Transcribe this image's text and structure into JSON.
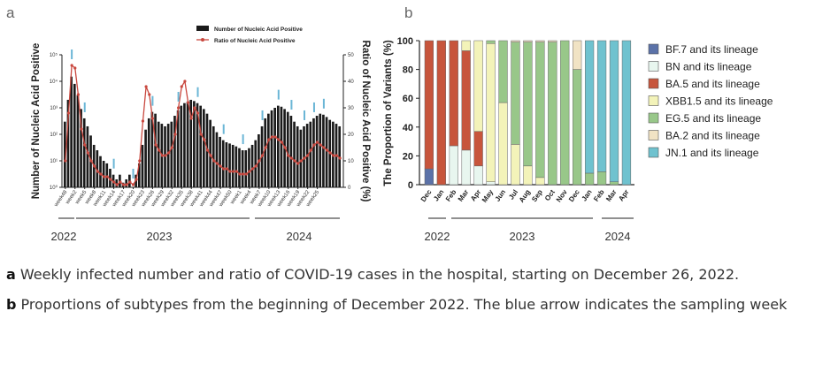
{
  "chart_data": [
    {
      "panel_label": "a",
      "type": "bar",
      "ylabel": "Number of Nucleic Acid Positive",
      "y2label": "Ratio of Nucleic Acid Positive (%)",
      "y_scale": "log",
      "ylim": [
        1,
        100000
      ],
      "y_ticks": [
        "10⁰",
        "10¹",
        "10²",
        "10³",
        "10⁴",
        "10⁵"
      ],
      "y2lim": [
        0,
        50
      ],
      "y2_ticks": [
        "0",
        "10",
        "20",
        "30",
        "40",
        "50"
      ],
      "legend": [
        "Number of Nucleic Acid Positive",
        "Ratio of Nucleic Acid Positive"
      ],
      "legend_position": "top-center",
      "x_tick_labels": [
        "week48",
        "week2",
        "week5",
        "week8",
        "week11",
        "week14",
        "week17",
        "week20",
        "week23",
        "week26",
        "week29",
        "week32",
        "week35",
        "week38",
        "week41",
        "week44",
        "week47",
        "week50",
        "week1",
        "week4",
        "week7",
        "week10",
        "week13",
        "week16",
        "week19",
        "week22",
        "week25"
      ],
      "year_groups": [
        "2022",
        "2023",
        "2024"
      ],
      "series": [
        {
          "name": "Number of Nucleic Acid Positive",
          "type": "bar",
          "values": [
            300,
            2000,
            15000,
            8000,
            3000,
            900,
            400,
            200,
            90,
            40,
            25,
            15,
            10,
            8,
            5,
            3,
            2,
            3,
            1.5,
            2,
            3,
            1,
            3,
            8,
            40,
            150,
            400,
            700,
            600,
            300,
            250,
            200,
            250,
            300,
            500,
            800,
            1200,
            1500,
            1700,
            2000,
            1800,
            1500,
            1200,
            900,
            600,
            350,
            200,
            120,
            80,
            60,
            50,
            45,
            40,
            35,
            30,
            25,
            25,
            30,
            40,
            60,
            100,
            200,
            400,
            600,
            800,
            1000,
            1200,
            1100,
            900,
            700,
            500,
            300,
            200,
            150,
            200,
            250,
            300,
            400,
            500,
            600,
            550,
            450,
            350,
            300,
            250,
            200
          ]
        },
        {
          "name": "Ratio of Nucleic Acid Positive",
          "type": "line",
          "values": [
            10,
            28,
            46,
            45,
            35,
            22,
            16,
            13,
            10,
            8,
            6,
            5,
            4,
            4,
            3,
            2,
            1,
            2,
            1,
            1,
            2,
            1,
            3,
            10,
            25,
            38,
            35,
            26,
            16,
            14,
            12,
            12,
            13,
            15,
            20,
            30,
            38,
            40,
            32,
            26,
            30,
            28,
            20,
            18,
            14,
            12,
            10,
            9,
            8,
            7,
            7,
            6,
            6,
            6,
            5,
            5,
            5,
            6,
            7,
            8,
            10,
            12,
            15,
            18,
            19,
            19,
            18,
            17,
            15,
            12,
            11,
            10,
            9,
            10,
            11,
            12,
            14,
            16,
            17,
            16,
            15,
            14,
            13,
            12,
            12,
            11
          ]
        }
      ],
      "sampling_arrows_at": [
        2,
        6,
        15,
        21,
        27,
        35,
        41,
        49,
        55,
        61,
        66,
        70,
        74,
        77,
        80
      ]
    },
    {
      "panel_label": "b",
      "type": "bar",
      "stacked": true,
      "ylabel": "The Proportion of Variants (%)",
      "ylim": [
        0,
        100
      ],
      "y_ticks": [
        "0",
        "20",
        "40",
        "60",
        "80",
        "100"
      ],
      "categories": [
        "Dec",
        "Jan",
        "Feb",
        "Mar",
        "Apr",
        "May",
        "Jun",
        "Jul",
        "Aug",
        "Sep",
        "Oct",
        "Nov",
        "Dec",
        "Jan",
        "Feb",
        "Mar",
        "Apr"
      ],
      "year_groups": [
        "2022",
        "2023",
        "2024"
      ],
      "legend_position": "right",
      "series": [
        {
          "name": "BF.7 and its lineage",
          "color": "#5b72a8",
          "values": [
            11,
            0,
            0,
            0,
            0,
            0,
            0,
            0,
            0,
            0,
            0,
            0,
            0,
            0,
            0,
            0,
            0
          ]
        },
        {
          "name": "BN and its lineage",
          "color": "#e8f6ef",
          "values": [
            0,
            0,
            27,
            24,
            13,
            2,
            0,
            0,
            0,
            0,
            0,
            0,
            0,
            0,
            0,
            0,
            0
          ]
        },
        {
          "name": "BA.5 and its lineage",
          "color": "#c7553c",
          "values": [
            89,
            100,
            73,
            69,
            24,
            0,
            0,
            0,
            0,
            0,
            0,
            0,
            0,
            0,
            0,
            0,
            0
          ]
        },
        {
          "name": "XBB1.5 and its lineage",
          "color": "#f3f3b9",
          "values": [
            0,
            0,
            0,
            7,
            63,
            96,
            57,
            28,
            13,
            5,
            0,
            0,
            0,
            0,
            0,
            0,
            0
          ]
        },
        {
          "name": "EG.5 and its lineage",
          "color": "#98c789",
          "values": [
            0,
            0,
            0,
            0,
            0,
            2,
            43,
            71,
            86,
            94,
            99,
            100,
            80,
            8,
            9,
            2,
            0
          ]
        },
        {
          "name": "BA.2 and its lineage",
          "color": "#f1e3c4",
          "values": [
            0,
            0,
            0,
            0,
            0,
            0,
            0,
            1,
            1,
            1,
            1,
            0,
            20,
            0,
            0,
            0,
            0
          ]
        },
        {
          "name": "JN.1 and its lineage",
          "color": "#6fc2cf",
          "values": [
            0,
            0,
            0,
            0,
            0,
            0,
            0,
            0,
            0,
            0,
            0,
            0,
            0,
            92,
            91,
            98,
            100
          ]
        }
      ]
    }
  ],
  "caption": {
    "a_label": "a",
    "a_text": "Weekly infected number and ratio of COVID-19 cases in the hospital, starting on December 26, 2022.",
    "b_label": "b",
    "b_text": "Proportions of subtypes from the beginning of December 2022. The blue arrow indicates the sampling week"
  },
  "colors": {
    "bar": "#1a1a1a",
    "line": "#c9483f",
    "arrow": "#6bb6d6"
  }
}
